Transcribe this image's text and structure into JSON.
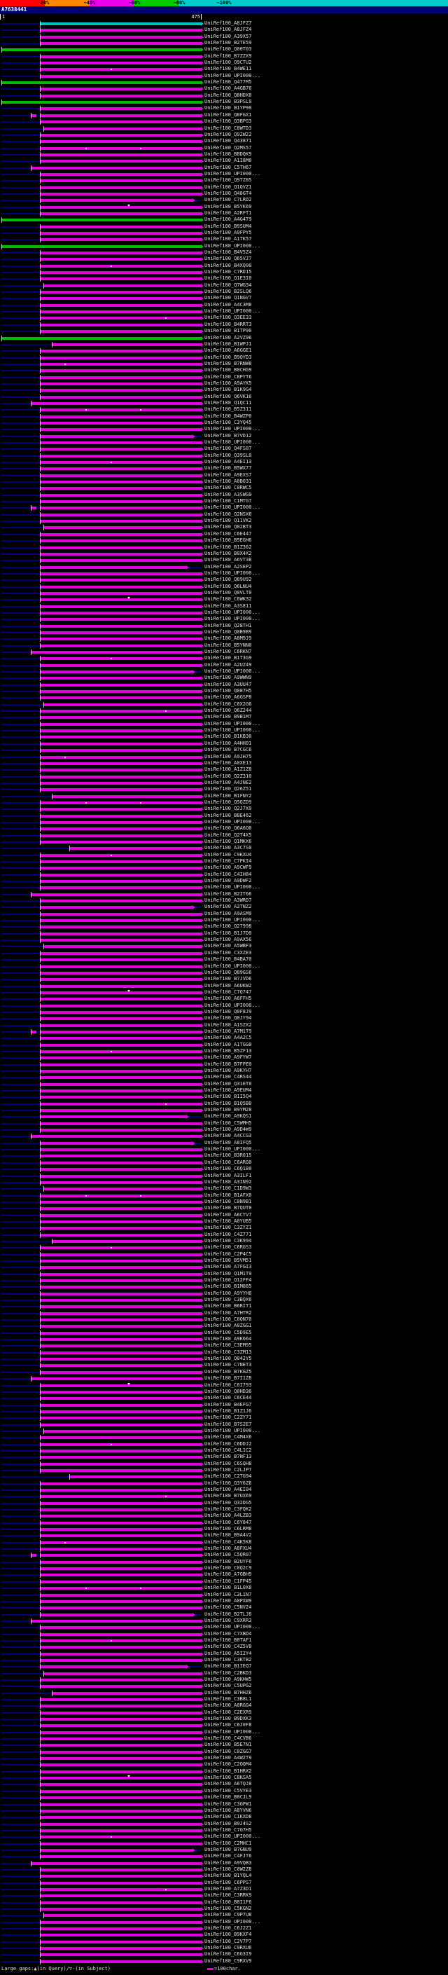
{
  "header": {
    "query_name": "A7638441",
    "key": {
      "labels": [
        "20%",
        "~40%",
        "~60%",
        "~80%",
        "~100%"
      ],
      "colors": [
        "#ff0000",
        "#ff8800",
        "#ee00ee",
        "#00cc00",
        "#00cccc"
      ]
    }
  },
  "ruler": {
    "start": "1",
    "end": "475"
  },
  "footer": {
    "gaps_legend": "Large gaps:▲(in Query)/▽-(in Subject)",
    "scale_legend": "=100char.",
    "scale_bar_color": "#e000e0"
  },
  "chart_data": {
    "type": "bar",
    "subtype": "blast-alignment-overview",
    "title": "A7638441",
    "query": {
      "name": "A7638441",
      "length": 475
    },
    "x_range": [
      1,
      475
    ],
    "identity_bins": [
      {
        "label": "20%",
        "color": "#ff0000"
      },
      {
        "label": "~40%",
        "color": "#ff8800"
      },
      {
        "label": "~60%",
        "color": "#ee00ee"
      },
      {
        "label": "~80%",
        "color": "#00cc00"
      },
      {
        "label": "~100%",
        "color": "#00cccc"
      }
    ],
    "colors": {
      "magenta": "#e000e0",
      "green": "#00bb00",
      "cyan": "#00c4c4"
    },
    "row_defaults": {
      "c": "magenta",
      "s": 92,
      "e": 475
    },
    "rows": [
      {
        "l": "UniRef100_A8JFZ7",
        "c": "cyan"
      },
      {
        "l": "UniRef100_A8JFZ4"
      },
      {
        "l": "UniRef100_A39X57"
      },
      {
        "l": "UniRef100_B2TE59"
      },
      {
        "l": "UniRef100_Q00T03",
        "c": "green",
        "s": 1
      },
      {
        "l": "UniRef100_B7ZZX9"
      },
      {
        "l": "UniRef100_Q9CTU2"
      },
      {
        "l": "UniRef100_B4WE11",
        "d": [
          260
        ]
      },
      {
        "l": "UniRef100_UPI000..."
      },
      {
        "l": "UniRef100_Q477M5",
        "c": "green",
        "s": 1
      },
      {
        "l": "UniRef100_A4GB76"
      },
      {
        "l": "UniRef100_Q8HDX0"
      },
      {
        "l": "UniRef100_B3PSL9",
        "c": "green",
        "s": 1
      },
      {
        "l": "UniRef100_B1YP90"
      },
      {
        "l": "UniRef100_Q8FGX1",
        "g2": [
          71,
          85
        ]
      },
      {
        "l": "UniRef100_Q3BPG3"
      },
      {
        "l": "UniRef100_C8WTD3",
        "s": 100
      },
      {
        "l": "UniRef100_Q92W22"
      },
      {
        "l": "UniRef100_Q43871"
      },
      {
        "l": "UniRef100_Q2MS57",
        "d": [
          200,
          330
        ]
      },
      {
        "l": "UniRef100_B8DQK9"
      },
      {
        "l": "UniRef100_A1I8M0"
      },
      {
        "l": "UniRef100_C5TH67",
        "s": 71
      },
      {
        "l": "UniRef100_UPI000..."
      },
      {
        "l": "UniRef100_Q97Z85"
      },
      {
        "l": "UniRef100_Q1QVZ1"
      },
      {
        "l": "UniRef100_Q48GT4"
      },
      {
        "l": "UniRef100_C7LRD2",
        "e": 455
      },
      {
        "l": "UniRef100_B5YK69",
        "gap": [
          300
        ]
      },
      {
        "l": "UniRef100_A2RFT1"
      },
      {
        "l": "UniRef100_A4G4T9",
        "c": "green",
        "s": 1
      },
      {
        "l": "UniRef100_B9SUM4"
      },
      {
        "l": "UniRef100_A9FPY5"
      },
      {
        "l": "UniRef100_A1TK57"
      },
      {
        "l": "UniRef100_UPI000...",
        "c": "green",
        "s": 1
      },
      {
        "l": "UniRef100_B4V5Z4"
      },
      {
        "l": "UniRef100_Q65VJ7"
      },
      {
        "l": "UniRef100_B4XQ00",
        "d": [
          260
        ]
      },
      {
        "l": "UniRef100_C7RD15"
      },
      {
        "l": "UniRef100_Q1E3I0"
      },
      {
        "l": "UniRef100_Q7WG34",
        "s": 100
      },
      {
        "l": "UniRef100_B2SLQ6"
      },
      {
        "l": "UniRef100_Q1NGV7"
      },
      {
        "l": "UniRef100_A4C3M8"
      },
      {
        "l": "UniRef100_UPI000..."
      },
      {
        "l": "UniRef100_Q3EE33",
        "d": [
          390
        ]
      },
      {
        "l": "UniRef100_B4RRT3"
      },
      {
        "l": "UniRef100_B1TP90"
      },
      {
        "l": "UniRef100_A2VZ96",
        "c": "green",
        "s": 1
      },
      {
        "l": "UniRef100_B1WPJ1",
        "s": 121
      },
      {
        "l": "UniRef100_A6GGE1"
      },
      {
        "l": "UniRef100_B9QYD3"
      },
      {
        "l": "UniRef100_B7RNW8",
        "d": [
          150
        ]
      },
      {
        "l": "UniRef100_B0CHG9"
      },
      {
        "l": "UniRef100_C8PYT6"
      },
      {
        "l": "UniRef100_A9AYK5"
      },
      {
        "l": "UniRef100_B1K9G4"
      },
      {
        "l": "UniRef100_Q6VK16"
      },
      {
        "l": "UniRef100_Q1QC11",
        "s": 71
      },
      {
        "l": "UniRef100_B5Z311",
        "d": [
          200,
          330
        ]
      },
      {
        "l": "UniRef100_B4WZP0"
      },
      {
        "l": "UniRef100_C3YQ45"
      },
      {
        "l": "UniRef100_UPI000..."
      },
      {
        "l": "UniRef100_B7VD12",
        "e": 455
      },
      {
        "l": "UniRef100_UPI000..."
      },
      {
        "l": "UniRef100_Q4FS07"
      },
      {
        "l": "UniRef100_Q39SL0"
      },
      {
        "l": "UniRef100_A4EI13",
        "d": [
          260
        ]
      },
      {
        "l": "UniRef100_B5WX77"
      },
      {
        "l": "UniRef100_A9EXS7"
      },
      {
        "l": "UniRef100_A0B031"
      },
      {
        "l": "UniRef100_C0RWC5"
      },
      {
        "l": "UniRef100_A3SWG9"
      },
      {
        "l": "UniRef100_C1MTG7"
      },
      {
        "l": "UniRef100_UPI000...",
        "g2": [
          71,
          85
        ]
      },
      {
        "l": "UniRef100_Q2NSX6"
      },
      {
        "l": "UniRef100_Q11VK2"
      },
      {
        "l": "UniRef100_Q02BT3",
        "s": 100
      },
      {
        "l": "UniRef100_C6E447"
      },
      {
        "l": "UniRef100_B5EGH6"
      },
      {
        "l": "UniRef100_B1Z362"
      },
      {
        "l": "UniRef100_B0X4X2"
      },
      {
        "l": "UniRef100_A6VT38"
      },
      {
        "l": "UniRef100_A2SEP2",
        "e": 440
      },
      {
        "l": "UniRef100_UPI000..."
      },
      {
        "l": "UniRef100_Q89U92"
      },
      {
        "l": "UniRef100_Q6LNU4"
      },
      {
        "l": "UniRef100_Q0VLT0"
      },
      {
        "l": "UniRef100_C6WK32",
        "gap": [
          300
        ]
      },
      {
        "l": "UniRef100_A3S811"
      },
      {
        "l": "UniRef100_UPI000..."
      },
      {
        "l": "UniRef100_UPI000..."
      },
      {
        "l": "UniRef100_Q28TH1"
      },
      {
        "l": "UniRef100_Q0B9B9"
      },
      {
        "l": "UniRef100_A8M9J9"
      },
      {
        "l": "UniRef100_B5YNN0"
      },
      {
        "l": "UniRef100_C6RKN7",
        "s": 71
      },
      {
        "l": "UniRef100_B1T3G9",
        "d": [
          260
        ]
      },
      {
        "l": "UniRef100_A2UZ49"
      },
      {
        "l": "UniRef100_UPI000...",
        "e": 455
      },
      {
        "l": "UniRef100_A9WWN9"
      },
      {
        "l": "UniRef100_A3UU47"
      },
      {
        "l": "UniRef100_Q087H5"
      },
      {
        "l": "UniRef100_A6GSP8"
      },
      {
        "l": "UniRef100_C6X2G6",
        "s": 100
      },
      {
        "l": "UniRef100_Q6Z244",
        "d": [
          390
        ]
      },
      {
        "l": "UniRef100_B9B1M7"
      },
      {
        "l": "UniRef100_UPI000..."
      },
      {
        "l": "UniRef100_UPI000..."
      },
      {
        "l": "UniRef100_B1KB30"
      },
      {
        "l": "UniRef100_A4HH01"
      },
      {
        "l": "UniRef100_B7CGC6"
      },
      {
        "l": "UniRef100_A9JH75",
        "d": [
          150
        ]
      },
      {
        "l": "UniRef100_A0XE13"
      },
      {
        "l": "UniRef100_A1Z1Z8"
      },
      {
        "l": "UniRef100_Q2Z310"
      },
      {
        "l": "UniRef100_A4JNE2"
      },
      {
        "l": "UniRef100_Q26Z51"
      },
      {
        "l": "UniRef100_B1FNY2",
        "s": 121
      },
      {
        "l": "UniRef100_Q5QZD9",
        "d": [
          200,
          330
        ]
      },
      {
        "l": "UniRef100_Q2J7X9"
      },
      {
        "l": "UniRef100_B8E462"
      },
      {
        "l": "UniRef100_UPI000..."
      },
      {
        "l": "UniRef100_Q6A6Q0"
      },
      {
        "l": "UniRef100_Q2T4X5"
      },
      {
        "l": "UniRef100_Q1MKX6"
      },
      {
        "l": "UniRef100_A3C7S0",
        "s": 163
      },
      {
        "l": "UniRef100_C9KXU4",
        "d": [
          260
        ]
      },
      {
        "l": "UniRef100_C7PKI4"
      },
      {
        "l": "UniRef100_A9CWF9"
      },
      {
        "l": "UniRef100_C4IH84"
      },
      {
        "l": "UniRef100_A9DWF2"
      },
      {
        "l": "UniRef100_UPI000..."
      },
      {
        "l": "UniRef100_B2IT66",
        "s": 71
      },
      {
        "l": "UniRef100_A3WRD7"
      },
      {
        "l": "UniRef100_A2TNZ2",
        "e": 455
      },
      {
        "l": "UniRef100_A9ASM9"
      },
      {
        "l": "UniRef100_UPI000..."
      },
      {
        "l": "UniRef100_Q27998"
      },
      {
        "l": "UniRef100_B1J7D0"
      },
      {
        "l": "UniRef100_A9AX56"
      },
      {
        "l": "UniRef100_A5WBF3",
        "s": 100
      },
      {
        "l": "UniRef100_C3XZE3"
      },
      {
        "l": "UniRef100_B4BA70"
      },
      {
        "l": "UniRef100_UPI000..."
      },
      {
        "l": "UniRef100_Q89GS6"
      },
      {
        "l": "UniRef100_B7JVD6"
      },
      {
        "l": "UniRef100_A6UKW2"
      },
      {
        "l": "UniRef100_C7Q747",
        "gap": [
          300
        ]
      },
      {
        "l": "UniRef100_A6FFH5"
      },
      {
        "l": "UniRef100_UPI000..."
      },
      {
        "l": "UniRef100_Q0F8J9"
      },
      {
        "l": "UniRef100_Q0JY94"
      },
      {
        "l": "UniRef100_A1SZX2"
      },
      {
        "l": "UniRef100_A7M1T9",
        "g2": [
          71,
          85
        ]
      },
      {
        "l": "UniRef100_A4A2C5"
      },
      {
        "l": "UniRef100_A1TGG0"
      },
      {
        "l": "UniRef100_B5ZF13",
        "d": [
          260
        ]
      },
      {
        "l": "UniRef100_A9FYW7"
      },
      {
        "l": "UniRef100_B7FPE0"
      },
      {
        "l": "UniRef100_A9KYH7"
      },
      {
        "l": "UniRef100_C4RS44"
      },
      {
        "l": "UniRef100_Q31ET0"
      },
      {
        "l": "UniRef100_A9EUM4"
      },
      {
        "l": "UniRef100_B1I5Q4"
      },
      {
        "l": "UniRef100_B1Q5B0",
        "d": [
          390
        ]
      },
      {
        "l": "UniRef100_B9YM28"
      },
      {
        "l": "UniRef100_A9KQS1",
        "e": 440
      },
      {
        "l": "UniRef100_C5WMH5"
      },
      {
        "l": "UniRef100_A9D4W9"
      },
      {
        "l": "UniRef100_A4CCG3",
        "s": 71
      },
      {
        "l": "UniRef100_A8IFQ5",
        "e": 455
      },
      {
        "l": "UniRef100_UPI000..."
      },
      {
        "l": "UniRef100_B3R015"
      },
      {
        "l": "UniRef100_C6ARG0"
      },
      {
        "l": "UniRef100_C6Q180"
      },
      {
        "l": "UniRef100_A3ILF1"
      },
      {
        "l": "UniRef100_A3IN92"
      },
      {
        "l": "UniRef100_C1D9W3",
        "s": 100
      },
      {
        "l": "UniRef100_B1AFX0",
        "d": [
          200,
          330
        ]
      },
      {
        "l": "UniRef100_C0N9B1"
      },
      {
        "l": "UniRef100_B7QUT0"
      },
      {
        "l": "UniRef100_A6CYV7"
      },
      {
        "l": "UniRef100_A0YUB5"
      },
      {
        "l": "UniRef100_C3ZYZ1"
      },
      {
        "l": "UniRef100_C4Z771"
      },
      {
        "l": "UniRef100_C3K994",
        "s": 121
      },
      {
        "l": "UniRef100_C6RGS3",
        "d": [
          260
        ]
      },
      {
        "l": "UniRef100_C2P4C5"
      },
      {
        "l": "UniRef100_B5VM51"
      },
      {
        "l": "UniRef100_A7FGI3"
      },
      {
        "l": "UniRef100_Q1M1T9"
      },
      {
        "l": "UniRef100_Q12FF4"
      },
      {
        "l": "UniRef100_B1M885"
      },
      {
        "l": "UniRef100_A9YYH6"
      },
      {
        "l": "UniRef100_C3BQX6"
      },
      {
        "l": "UniRef100_B6RIT1"
      },
      {
        "l": "UniRef100_A7HTR2"
      },
      {
        "l": "UniRef100_C0QN70"
      },
      {
        "l": "UniRef100_A0ZGG1"
      },
      {
        "l": "UniRef100_C5D9E5"
      },
      {
        "l": "UniRef100_A9K664"
      },
      {
        "l": "UniRef100_C3EM95"
      },
      {
        "l": "UniRef100_C3ZM13"
      },
      {
        "l": "UniRef100_Q042Y5"
      },
      {
        "l": "UniRef100_C7NET3"
      },
      {
        "l": "UniRef100_B7KGZ5"
      },
      {
        "l": "UniRef100_B7I1Z8",
        "s": 71
      },
      {
        "l": "UniRef100_C6I793",
        "gap": [
          300
        ]
      },
      {
        "l": "UniRef100_Q0HD36"
      },
      {
        "l": "UniRef100_C6CE44"
      },
      {
        "l": "UniRef100_B4EFG7"
      },
      {
        "l": "UniRef100_B1Z1J6"
      },
      {
        "l": "UniRef100_C2ZY71"
      },
      {
        "l": "UniRef100_B7S2E7"
      },
      {
        "l": "UniRef100_UPI000...",
        "s": 100
      },
      {
        "l": "UniRef100_C4M4X6"
      },
      {
        "l": "UniRef100_C6DDJ2",
        "d": [
          260
        ]
      },
      {
        "l": "UniRef100_C4L1C2"
      },
      {
        "l": "UniRef100_B7NF13"
      },
      {
        "l": "UniRef100_C6SQH8"
      },
      {
        "l": "UniRef100_C2LJP7"
      },
      {
        "l": "UniRef100_C2TG94",
        "s": 163
      },
      {
        "l": "UniRef100_Q3Y6Z6"
      },
      {
        "l": "UniRef100_A4EI04"
      },
      {
        "l": "UniRef100_B7UX69",
        "d": [
          390
        ]
      },
      {
        "l": "UniRef100_Q32DG5"
      },
      {
        "l": "UniRef100_C3FQK2"
      },
      {
        "l": "UniRef100_A4LZB3"
      },
      {
        "l": "UniRef100_C6Y847"
      },
      {
        "l": "UniRef100_C6LRM8"
      },
      {
        "l": "UniRef100_B9A4V2"
      },
      {
        "l": "UniRef100_C4K5K8",
        "d": [
          150
        ]
      },
      {
        "l": "UniRef100_A8FXU4"
      },
      {
        "l": "UniRef100_C5QR07",
        "g2": [
          71,
          85
        ]
      },
      {
        "l": "UniRef100_B2UYF6"
      },
      {
        "l": "UniRef100_C0Q2C9"
      },
      {
        "l": "UniRef100_A7GBH9"
      },
      {
        "l": "UniRef100_C1FP45"
      },
      {
        "l": "UniRef100_B1L0X8",
        "d": [
          200,
          330
        ]
      },
      {
        "l": "UniRef100_C3L1N7"
      },
      {
        "l": "UniRef100_A0PXW9"
      },
      {
        "l": "UniRef100_C5NV24"
      },
      {
        "l": "UniRef100_B2TLJ6",
        "e": 455
      },
      {
        "l": "UniRef100_C9XRR3",
        "s": 71
      },
      {
        "l": "UniRef100_UPI000..."
      },
      {
        "l": "UniRef100_C7XBD4"
      },
      {
        "l": "UniRef100_B0TAF1",
        "d": [
          260
        ]
      },
      {
        "l": "UniRef100_C4Z5V8"
      },
      {
        "l": "UniRef100_A5I2Y4"
      },
      {
        "l": "UniRef100_C3KTB2"
      },
      {
        "l": "UniRef100_B1IEQ7",
        "e": 440
      },
      {
        "l": "UniRef100_C2BKD3",
        "s": 100
      },
      {
        "l": "UniRef100_A9KHW5"
      },
      {
        "l": "UniRef100_C5UPG2"
      },
      {
        "l": "UniRef100_B7HHZ6",
        "s": 121
      },
      {
        "l": "UniRef100_C3B8L1"
      },
      {
        "l": "UniRef100_A0RGG4"
      },
      {
        "l": "UniRef100_C2EXR9"
      },
      {
        "l": "UniRef100_B9DXK3"
      },
      {
        "l": "UniRef100_C6J0F8"
      },
      {
        "l": "UniRef100_UPI000..."
      },
      {
        "l": "UniRef100_C4CVB6"
      },
      {
        "l": "UniRef100_B5E7N1"
      },
      {
        "l": "UniRef100_C0ZGG7"
      },
      {
        "l": "UniRef100_A4W2T9"
      },
      {
        "l": "UniRef100_C2QQM4"
      },
      {
        "l": "UniRef100_B1HRX2"
      },
      {
        "l": "UniRef100_C8KSA5",
        "gap": [
          300
        ]
      },
      {
        "l": "UniRef100_A6TQJ8"
      },
      {
        "l": "UniRef100_C5VYE3"
      },
      {
        "l": "UniRef100_B0CJL9"
      },
      {
        "l": "UniRef100_C3GPW1"
      },
      {
        "l": "UniRef100_A8YVN6"
      },
      {
        "l": "UniRef100_C1KXD8"
      },
      {
        "l": "UniRef100_B9J4S2"
      },
      {
        "l": "UniRef100_C7G7H5"
      },
      {
        "l": "UniRef100_UPI000...",
        "d": [
          260
        ]
      },
      {
        "l": "UniRef100_C2MHC1"
      },
      {
        "l": "UniRef100_B7GNU9",
        "e": 455
      },
      {
        "l": "UniRef100_C4FJT6"
      },
      {
        "l": "UniRef100_A9VQB3",
        "s": 71
      },
      {
        "l": "UniRef100_C0W2Z8"
      },
      {
        "l": "UniRef100_B1YQL4"
      },
      {
        "l": "UniRef100_C6PPS7"
      },
      {
        "l": "UniRef100_A7Z3D1",
        "d": [
          390
        ]
      },
      {
        "l": "UniRef100_C3RRK9"
      },
      {
        "l": "UniRef100_B8I1F6"
      },
      {
        "l": "UniRef100_C5KGN2"
      },
      {
        "l": "UniRef100_C9P7U8",
        "s": 100
      },
      {
        "l": "UniRef100_UPI000..."
      },
      {
        "l": "UniRef100_C6J2Z1"
      },
      {
        "l": "UniRef100_B9KXF4"
      },
      {
        "l": "UniRef100_C2V7P7"
      },
      {
        "l": "UniRef100_C9RXU6"
      },
      {
        "l": "UniRef100_C6G3I9"
      },
      {
        "l": "UniRef100_C9RXV9"
      }
    ]
  }
}
